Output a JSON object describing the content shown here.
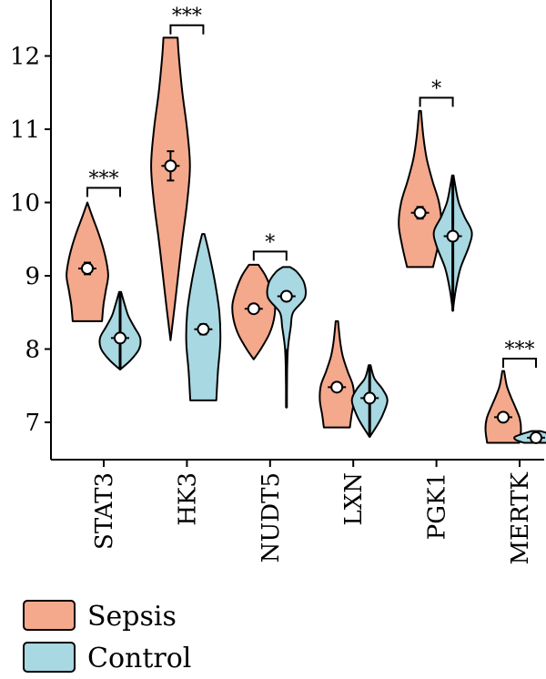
{
  "chart_data": {
    "type": "violin",
    "y_axis": {
      "min": 6.5,
      "max": 12.75,
      "ticks": [
        7,
        8,
        9,
        10,
        11,
        12
      ],
      "tick_labels": [
        "7",
        "8",
        "9",
        "10",
        "11",
        "12"
      ]
    },
    "categories": [
      "STAT3",
      "HK3",
      "NUDT5",
      "LXN",
      "PGK1",
      "MERTK"
    ],
    "series": [
      {
        "name": "Sepsis",
        "color": "#f4a98c",
        "groups": [
          {
            "category": "STAT3",
            "median": 9.1,
            "ci": [
              9.02,
              9.18
            ],
            "min": 8.38,
            "max": 10.0,
            "density": [
              [
                8.38,
                0.62
              ],
              [
                8.6,
                0.68
              ],
              [
                8.8,
                0.78
              ],
              [
                9.0,
                0.88
              ],
              [
                9.2,
                0.8
              ],
              [
                9.4,
                0.65
              ],
              [
                9.6,
                0.45
              ],
              [
                9.8,
                0.22
              ],
              [
                10.0,
                0.0
              ]
            ]
          },
          {
            "category": "HK3",
            "median": 10.5,
            "ci": [
              10.3,
              10.7
            ],
            "min": 8.12,
            "max": 12.25,
            "density": [
              [
                8.12,
                0.0
              ],
              [
                8.6,
                0.18
              ],
              [
                9.0,
                0.32
              ],
              [
                9.5,
                0.5
              ],
              [
                10.0,
                0.7
              ],
              [
                10.5,
                0.82
              ],
              [
                11.0,
                0.7
              ],
              [
                11.5,
                0.5
              ],
              [
                12.0,
                0.35
              ],
              [
                12.25,
                0.3
              ]
            ]
          },
          {
            "category": "NUDT5",
            "median": 8.55,
            "ci": [
              8.52,
              8.58
            ],
            "min": 7.86,
            "max": 9.15,
            "density": [
              [
                7.86,
                0.0
              ],
              [
                8.0,
                0.3
              ],
              [
                8.2,
                0.65
              ],
              [
                8.4,
                0.85
              ],
              [
                8.6,
                0.9
              ],
              [
                8.8,
                0.75
              ],
              [
                9.0,
                0.5
              ],
              [
                9.15,
                0.2
              ]
            ]
          },
          {
            "category": "LXN",
            "median": 7.48,
            "ci": [
              7.45,
              7.51
            ],
            "min": 6.93,
            "max": 8.38,
            "density": [
              [
                6.93,
                0.55
              ],
              [
                7.1,
                0.62
              ],
              [
                7.3,
                0.72
              ],
              [
                7.5,
                0.68
              ],
              [
                7.7,
                0.45
              ],
              [
                7.9,
                0.25
              ],
              [
                8.1,
                0.14
              ],
              [
                8.38,
                0.05
              ]
            ]
          },
          {
            "category": "PGK1",
            "median": 9.86,
            "ci": [
              9.78,
              9.94
            ],
            "min": 9.12,
            "max": 11.25,
            "density": [
              [
                9.12,
                0.55
              ],
              [
                9.4,
                0.75
              ],
              [
                9.7,
                0.9
              ],
              [
                10.0,
                0.8
              ],
              [
                10.3,
                0.52
              ],
              [
                10.6,
                0.28
              ],
              [
                10.9,
                0.14
              ],
              [
                11.25,
                0.04
              ]
            ]
          },
          {
            "category": "MERTK",
            "median": 7.07,
            "ci": [
              7.04,
              7.1
            ],
            "min": 6.72,
            "max": 7.7,
            "density": [
              [
                6.72,
                0.68
              ],
              [
                6.9,
                0.75
              ],
              [
                7.05,
                0.7
              ],
              [
                7.2,
                0.52
              ],
              [
                7.35,
                0.32
              ],
              [
                7.5,
                0.15
              ],
              [
                7.7,
                0.04
              ]
            ]
          }
        ]
      },
      {
        "name": "Control",
        "color": "#a8d8e2",
        "groups": [
          {
            "category": "STAT3",
            "median": 8.15,
            "ci": [
              8.12,
              8.18
            ],
            "min": 7.72,
            "max": 8.78,
            "density": [
              [
                7.72,
                0.0
              ],
              [
                7.85,
                0.45
              ],
              [
                8.0,
                0.8
              ],
              [
                8.15,
                0.85
              ],
              [
                8.3,
                0.6
              ],
              [
                8.45,
                0.35
              ],
              [
                8.6,
                0.2
              ],
              [
                8.78,
                0.04
              ]
            ]
          },
          {
            "category": "HK3",
            "median": 8.27,
            "ci": [
              8.2,
              8.34
            ],
            "min": 7.3,
            "max": 9.57,
            "density": [
              [
                7.3,
                0.55
              ],
              [
                7.7,
                0.62
              ],
              [
                8.1,
                0.72
              ],
              [
                8.5,
                0.68
              ],
              [
                8.9,
                0.5
              ],
              [
                9.3,
                0.25
              ],
              [
                9.57,
                0.05
              ]
            ]
          },
          {
            "category": "NUDT5",
            "median": 8.72,
            "ci": [
              8.68,
              8.76
            ],
            "min": 7.2,
            "max": 9.12,
            "density": [
              [
                7.2,
                0.0
              ],
              [
                7.6,
                0.02
              ],
              [
                8.0,
                0.06
              ],
              [
                8.3,
                0.18
              ],
              [
                8.5,
                0.28
              ],
              [
                8.7,
                0.78
              ],
              [
                8.9,
                0.75
              ],
              [
                9.05,
                0.45
              ],
              [
                9.12,
                0.15
              ]
            ]
          },
          {
            "category": "LXN",
            "median": 7.33,
            "ci": [
              7.3,
              7.36
            ],
            "min": 6.8,
            "max": 7.78,
            "density": [
              [
                6.8,
                0.0
              ],
              [
                6.95,
                0.3
              ],
              [
                7.1,
                0.55
              ],
              [
                7.3,
                0.75
              ],
              [
                7.45,
                0.55
              ],
              [
                7.6,
                0.2
              ],
              [
                7.78,
                0.04
              ]
            ]
          },
          {
            "category": "PGK1",
            "median": 9.54,
            "ci": [
              9.51,
              9.57
            ],
            "min": 8.52,
            "max": 10.37,
            "density": [
              [
                8.52,
                0.0
              ],
              [
                8.8,
                0.12
              ],
              [
                9.1,
                0.32
              ],
              [
                9.4,
                0.68
              ],
              [
                9.6,
                0.8
              ],
              [
                9.8,
                0.5
              ],
              [
                10.0,
                0.25
              ],
              [
                10.2,
                0.12
              ],
              [
                10.37,
                0.03
              ]
            ]
          },
          {
            "category": "MERTK",
            "median": 6.79,
            "ci": [
              6.77,
              6.81
            ],
            "min": 6.72,
            "max": 6.88,
            "density": [
              [
                6.72,
                0.5
              ],
              [
                6.76,
                0.85
              ],
              [
                6.8,
                0.9
              ],
              [
                6.84,
                0.6
              ],
              [
                6.88,
                0.2
              ]
            ]
          }
        ]
      }
    ],
    "significance": [
      {
        "category": "STAT3",
        "label": "***",
        "y": 10.2
      },
      {
        "category": "HK3",
        "label": "***",
        "y": 12.42
      },
      {
        "category": "NUDT5",
        "label": "*",
        "y": 9.33
      },
      {
        "category": "PGK1",
        "label": "*",
        "y": 11.43
      },
      {
        "category": "MERTK",
        "label": "***",
        "y": 7.87
      }
    ],
    "legend": {
      "placement": "bottom-left",
      "entries": [
        "Sepsis",
        "Control"
      ]
    }
  }
}
